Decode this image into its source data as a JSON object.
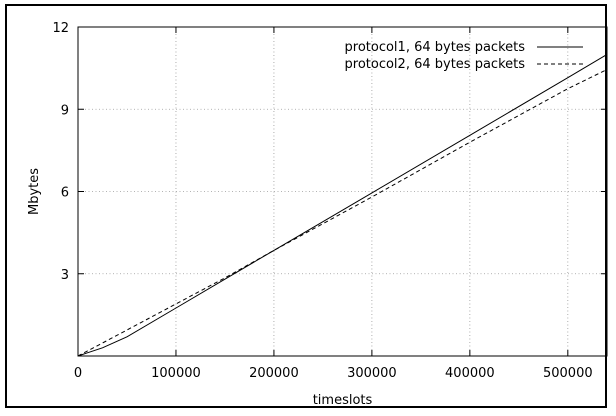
{
  "chart_data": {
    "type": "line",
    "xlabel": "timeslots",
    "ylabel": "Mbytes",
    "xlim": [
      0,
      540000
    ],
    "ylim": [
      0,
      12
    ],
    "x_ticks": [
      0,
      100000,
      200000,
      300000,
      400000,
      500000
    ],
    "x_tick_labels": [
      "0",
      "100000",
      "200000",
      "300000",
      "400000",
      "500000"
    ],
    "y_ticks": [
      3,
      6,
      9,
      12
    ],
    "y_tick_labels": [
      "3",
      "6",
      "9",
      "12"
    ],
    "grid": true,
    "legend_position": "top-right",
    "series": [
      {
        "name": "protocol1, 64 bytes packets",
        "style": "solid",
        "color": "#000000",
        "x": [
          0,
          10000,
          25000,
          50000,
          100000,
          150000,
          200000,
          300000,
          400000,
          500000,
          540000
        ],
        "y": [
          0.0,
          0.12,
          0.3,
          0.7,
          1.75,
          2.8,
          3.85,
          5.95,
          8.05,
          10.15,
          11.0
        ]
      },
      {
        "name": "protocol2, 64 bytes packets",
        "style": "dashed",
        "color": "#000000",
        "x": [
          0,
          50000,
          100000,
          150000,
          200000,
          300000,
          400000,
          500000,
          540000
        ],
        "y": [
          0.0,
          0.95,
          1.9,
          2.85,
          3.85,
          5.8,
          7.8,
          9.75,
          10.45
        ]
      }
    ]
  }
}
